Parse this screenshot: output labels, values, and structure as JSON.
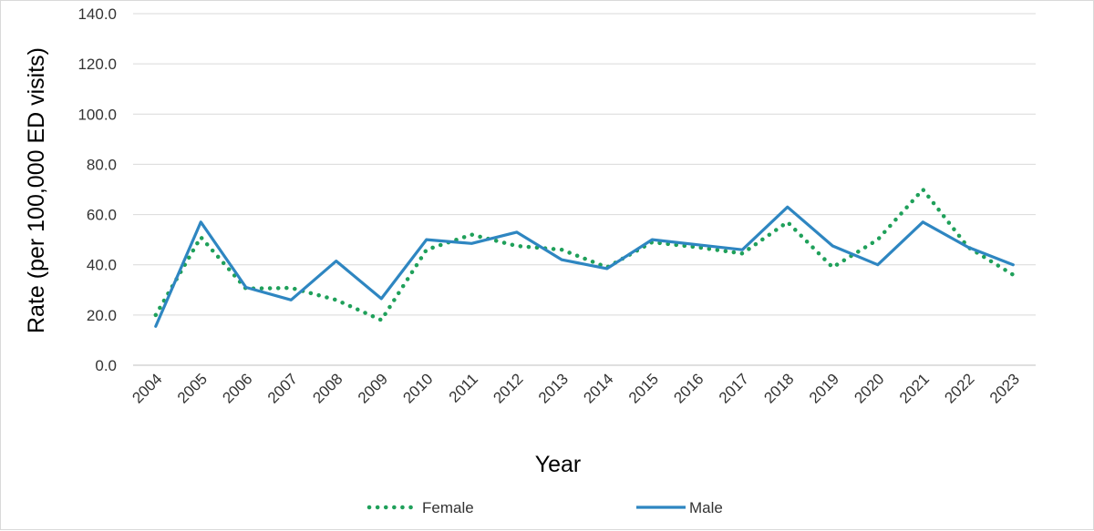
{
  "chart_data": {
    "type": "line",
    "title": "",
    "xlabel": "Year",
    "ylabel": "Rate (per 100,000 ED visits)",
    "ylim": [
      0,
      140
    ],
    "yticks": [
      0,
      20,
      40,
      60,
      80,
      100,
      120,
      140
    ],
    "ytick_labels": [
      "0.0",
      "20.0",
      "40.0",
      "60.0",
      "80.0",
      "100.0",
      "120.0",
      "140.0"
    ],
    "grid": true,
    "legend_position": "bottom",
    "categories": [
      "2004",
      "2005",
      "2006",
      "2007",
      "2008",
      "2009",
      "2010",
      "2011",
      "2012",
      "2013",
      "2014",
      "2015",
      "2016",
      "2017",
      "2018",
      "2019",
      "2020",
      "2021",
      "2022",
      "2023"
    ],
    "series": [
      {
        "name": "Female",
        "color": "#1fa05a",
        "style": "dotted",
        "values": [
          20.0,
          51.0,
          30.5,
          30.8,
          26.0,
          18.0,
          46.0,
          52.0,
          47.5,
          46.0,
          39.0,
          49.0,
          47.0,
          44.5,
          57.0,
          39.0,
          50.0,
          70.0,
          47.0,
          36.0
        ]
      },
      {
        "name": "Male",
        "color": "#2e86c1",
        "style": "solid",
        "values": [
          15.5,
          57.0,
          31.0,
          26.0,
          41.5,
          26.5,
          50.0,
          48.5,
          53.0,
          42.0,
          38.5,
          50.0,
          48.0,
          46.0,
          63.0,
          47.5,
          40.0,
          57.0,
          47.0,
          40.0
        ]
      }
    ]
  }
}
